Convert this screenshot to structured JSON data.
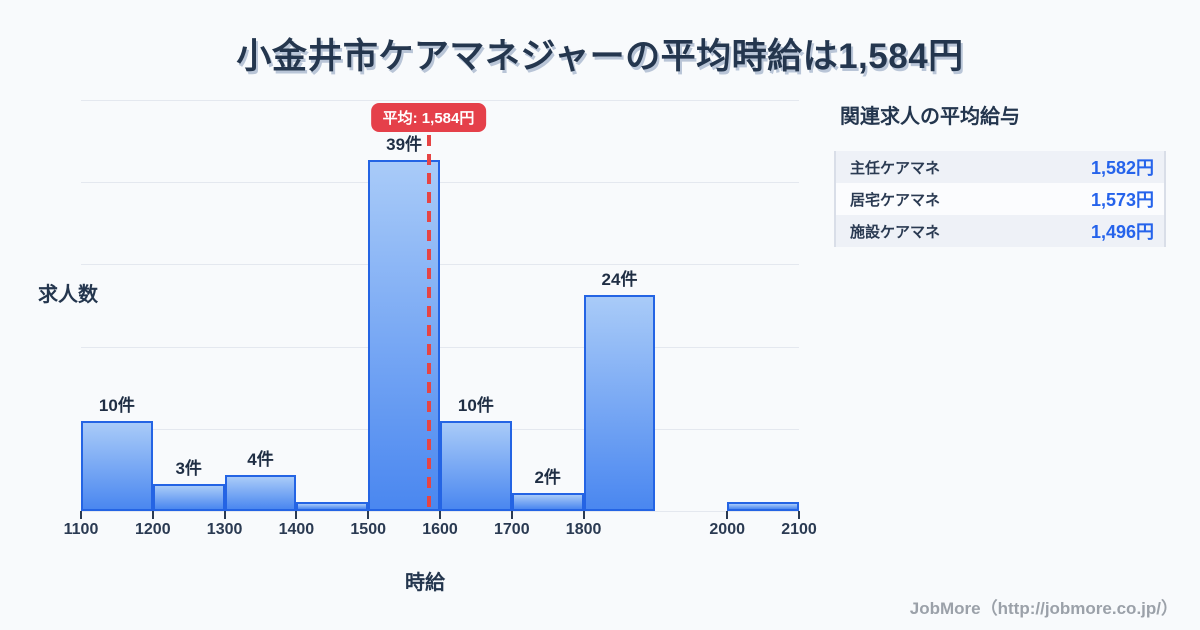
{
  "title": "小金井市ケアマネジャーの平均時給は1,584円",
  "chart_data": {
    "type": "bar",
    "title": "小金井市ケアマネジャーの平均時給は1,584円",
    "xlabel": "時給",
    "ylabel": "求人数",
    "xlim": [
      1100,
      2100
    ],
    "bin_width": 100,
    "x_ticks": [
      1100,
      1200,
      1300,
      1400,
      1500,
      1600,
      1700,
      1800,
      2000,
      2100
    ],
    "grid": true,
    "bins": [
      {
        "start": 1100,
        "end": 1200,
        "count": 10,
        "label": "10件"
      },
      {
        "start": 1200,
        "end": 1300,
        "count": 3,
        "label": "3件"
      },
      {
        "start": 1300,
        "end": 1400,
        "count": 4,
        "label": "4件"
      },
      {
        "start": 1400,
        "end": 1500,
        "count": 1,
        "label": ""
      },
      {
        "start": 1500,
        "end": 1600,
        "count": 39,
        "label": "39件"
      },
      {
        "start": 1600,
        "end": 1700,
        "count": 10,
        "label": "10件"
      },
      {
        "start": 1700,
        "end": 1800,
        "count": 2,
        "label": "2件"
      },
      {
        "start": 1800,
        "end": 1900,
        "count": 24,
        "label": "24件"
      },
      {
        "start": 1900,
        "end": 2000,
        "count": 0,
        "label": ""
      },
      {
        "start": 2000,
        "end": 2100,
        "count": 1,
        "label": ""
      }
    ],
    "average": {
      "value": 1584,
      "label": "平均: 1,584円"
    },
    "colors": {
      "bar_fill_top": "#a9cbf8",
      "bar_fill_bottom": "#4a87f0",
      "bar_border": "#2464e4",
      "average_line": "#e64444",
      "average_pill_bg": "#e5404a",
      "average_pill_text": "#ffffff",
      "gridline": "#e4e8ef"
    }
  },
  "panel": {
    "title": "関連求人の平均給与",
    "rows": [
      {
        "label": "主任ケアマネ",
        "value": "1,582円"
      },
      {
        "label": "居宅ケアマネ",
        "value": "1,573円"
      },
      {
        "label": "施設ケアマネ",
        "value": "1,496円"
      }
    ],
    "value_color": "#2563eb"
  },
  "footer": {
    "credit": "JobMore（http://jobmore.co.jp/）"
  }
}
